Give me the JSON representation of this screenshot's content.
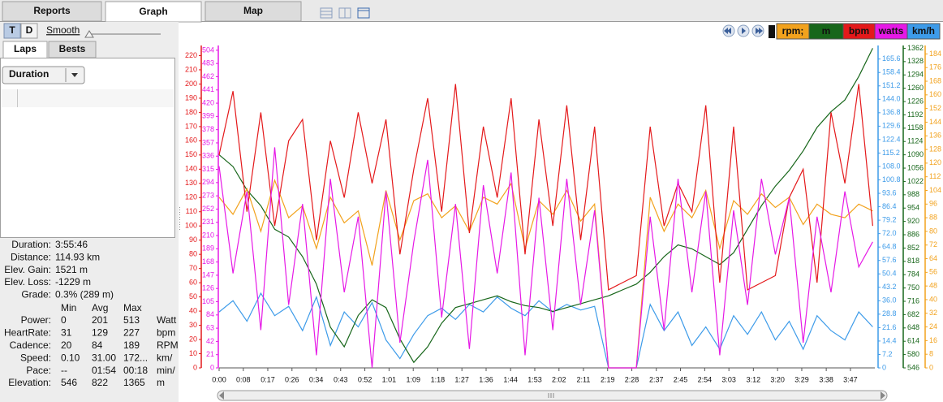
{
  "tabs": [
    "Reports",
    "Graph",
    "Map"
  ],
  "toolbar": {
    "toggles": [
      "T",
      "D"
    ],
    "smooth_label": "Smooth"
  },
  "side_panel": {
    "tabs": [
      "Laps",
      "Bests"
    ],
    "dropdown": "Duration"
  },
  "stats": {
    "summary": [
      [
        "Duration:",
        "3:55:46"
      ],
      [
        "Distance:",
        "114.93 km"
      ],
      [
        "Elev. Gain:",
        "1521 m"
      ],
      [
        "Elev. Loss:",
        "-1229 m"
      ],
      [
        "Grade:",
        "0.3% (289 m)"
      ]
    ],
    "header": [
      "Min",
      "Avg",
      "Max"
    ],
    "rows": [
      [
        "Power:",
        "0",
        "201",
        "513",
        "Watt"
      ],
      [
        "HeartRate:",
        "31",
        "129",
        "227",
        "bpm"
      ],
      [
        "Cadence:",
        "20",
        "84",
        "189",
        "RPM"
      ],
      [
        "Speed:",
        "0.10",
        "31.00",
        "172...",
        "km/"
      ],
      [
        "Pace:",
        "--",
        "01:54",
        "00:18",
        "min/"
      ],
      [
        "Elevation:",
        "546",
        "822",
        "1365",
        "m"
      ]
    ]
  },
  "graph": {
    "type": "line",
    "x": [
      0,
      5,
      10,
      15,
      20,
      25,
      30,
      35,
      40,
      45,
      50,
      55,
      60,
      65,
      70,
      75,
      80,
      85,
      90,
      95,
      100,
      105,
      110,
      115,
      120,
      125,
      130,
      135,
      140,
      145,
      150,
      155,
      160,
      165,
      170,
      175,
      180,
      185,
      190,
      195,
      200,
      205,
      210,
      215,
      220,
      225,
      230,
      235
    ],
    "xlim": [
      0,
      235.77
    ],
    "xticks": [
      {
        "value": 0,
        "label": "0:00"
      },
      {
        "value": 8.7,
        "label": "0:08"
      },
      {
        "value": 17.5,
        "label": "0:17"
      },
      {
        "value": 26.2,
        "label": "0:26"
      },
      {
        "value": 34.9,
        "label": "0:34"
      },
      {
        "value": 43.7,
        "label": "0:43"
      },
      {
        "value": 52.4,
        "label": "0:52"
      },
      {
        "value": 61.1,
        "label": "1:01"
      },
      {
        "value": 69.8,
        "label": "1:09"
      },
      {
        "value": 78.6,
        "label": "1:18"
      },
      {
        "value": 87.3,
        "label": "1:27"
      },
      {
        "value": 96.0,
        "label": "1:36"
      },
      {
        "value": 104.8,
        "label": "1:44"
      },
      {
        "value": 113.5,
        "label": "1:53"
      },
      {
        "value": 122.2,
        "label": "2:02"
      },
      {
        "value": 131.0,
        "label": "2:11"
      },
      {
        "value": 139.7,
        "label": "2:19"
      },
      {
        "value": 148.4,
        "label": "2:28"
      },
      {
        "value": 157.2,
        "label": "2:37"
      },
      {
        "value": 165.9,
        "label": "2:45"
      },
      {
        "value": 174.6,
        "label": "2:54"
      },
      {
        "value": 183.3,
        "label": "3:03"
      },
      {
        "value": 192.1,
        "label": "3:12"
      },
      {
        "value": 200.8,
        "label": "3:20"
      },
      {
        "value": 209.5,
        "label": "3:29"
      },
      {
        "value": 218.3,
        "label": "3:38"
      },
      {
        "value": 227.0,
        "label": "3:47"
      }
    ],
    "series": [
      {
        "name": "rpm;",
        "color": "#f2a21d",
        "ylim": [
          0,
          188
        ],
        "yticks": [
          0,
          8,
          16,
          24,
          32,
          40,
          48,
          56,
          64,
          72,
          80,
          88,
          96,
          104,
          112,
          120,
          128,
          136,
          144,
          152,
          160,
          168,
          176,
          184
        ],
        "values": [
          100,
          90,
          105,
          80,
          110,
          88,
          95,
          70,
          100,
          85,
          92,
          60,
          104,
          75,
          98,
          102,
          88,
          95,
          80,
          100,
          96,
          108,
          70,
          98,
          90,
          104,
          86,
          96,
          0,
          0,
          0,
          100,
          80,
          96,
          88,
          104,
          70,
          98,
          90,
          102,
          94,
          100,
          84,
          96,
          90,
          88,
          96,
          92
        ]
      },
      {
        "name": "m",
        "color": "#17661a",
        "ylim": [
          546,
          1365
        ],
        "yticks": [
          546,
          580,
          614,
          648,
          682,
          716,
          750,
          784,
          818,
          852,
          886,
          920,
          954,
          988,
          1022,
          1056,
          1090,
          1124,
          1158,
          1192,
          1226,
          1260,
          1294,
          1328,
          1362
        ],
        "values": [
          1090,
          1060,
          1000,
          960,
          900,
          880,
          830,
          760,
          650,
          600,
          680,
          720,
          700,
          620,
          560,
          600,
          660,
          700,
          710,
          720,
          730,
          715,
          705,
          700,
          690,
          700,
          710,
          720,
          730,
          745,
          760,
          790,
          830,
          860,
          850,
          830,
          810,
          840,
          900,
          960,
          1010,
          1050,
          1100,
          1160,
          1200,
          1230,
          1290,
          1362
        ]
      },
      {
        "name": "bpm",
        "color": "#e4191b",
        "ylim": [
          0,
          226
        ],
        "yticks": [
          0,
          10,
          20,
          30,
          40,
          50,
          60,
          70,
          80,
          90,
          100,
          110,
          120,
          130,
          140,
          150,
          160,
          170,
          180,
          190,
          200,
          210,
          220
        ],
        "values": [
          150,
          195,
          110,
          180,
          100,
          160,
          175,
          90,
          160,
          120,
          180,
          130,
          175,
          80,
          140,
          190,
          110,
          200,
          95,
          170,
          120,
          190,
          80,
          175,
          100,
          185,
          90,
          170,
          55,
          60,
          65,
          170,
          100,
          130,
          110,
          185,
          60,
          170,
          55,
          60,
          65,
          120,
          140,
          60,
          180,
          130,
          200,
          100
        ]
      },
      {
        "name": "watts",
        "color": "#e619e6",
        "ylim": [
          0,
          509
        ],
        "yticks": [
          0,
          21,
          42,
          63,
          84,
          105,
          126,
          147,
          168,
          189,
          210,
          231,
          252,
          273,
          294,
          315,
          336,
          357,
          378,
          399,
          420,
          441,
          462,
          483,
          504
        ],
        "values": [
          320,
          150,
          280,
          60,
          350,
          100,
          260,
          20,
          300,
          120,
          240,
          0,
          280,
          40,
          200,
          330,
          80,
          260,
          30,
          290,
          150,
          310,
          20,
          270,
          60,
          300,
          100,
          250,
          0,
          0,
          0,
          240,
          60,
          300,
          120,
          280,
          20,
          250,
          100,
          300,
          180,
          270,
          40,
          240,
          120,
          280,
          160,
          200
        ]
      },
      {
        "name": "km/h",
        "color": "#3d9be9",
        "ylim": [
          0,
          172
        ],
        "yticks": [
          0,
          7.2,
          14.4,
          21.6,
          28.8,
          {
            "value": 36,
            "label": "36.0"
          },
          43.2,
          50.4,
          57.6,
          64.8,
          {
            "value": 72,
            "label": "72.0"
          },
          79.2,
          86.4,
          93.6,
          100.8,
          {
            "value": 108,
            "label": "108.0"
          },
          115.2,
          122.4,
          129.6,
          136.8,
          {
            "value": 144,
            "label": "144.0"
          },
          151.2,
          158.4,
          165.6
        ],
        "values": [
          30,
          36,
          25,
          40,
          28,
          33,
          20,
          38,
          12,
          30,
          22,
          35,
          15,
          5,
          18,
          28,
          32,
          26,
          34,
          30,
          38,
          32,
          28,
          36,
          30,
          34,
          31,
          33,
          0,
          0,
          0,
          34,
          20,
          30,
          12,
          22,
          10,
          28,
          18,
          30,
          15,
          25,
          10,
          28,
          20,
          15,
          30,
          22
        ]
      }
    ]
  }
}
